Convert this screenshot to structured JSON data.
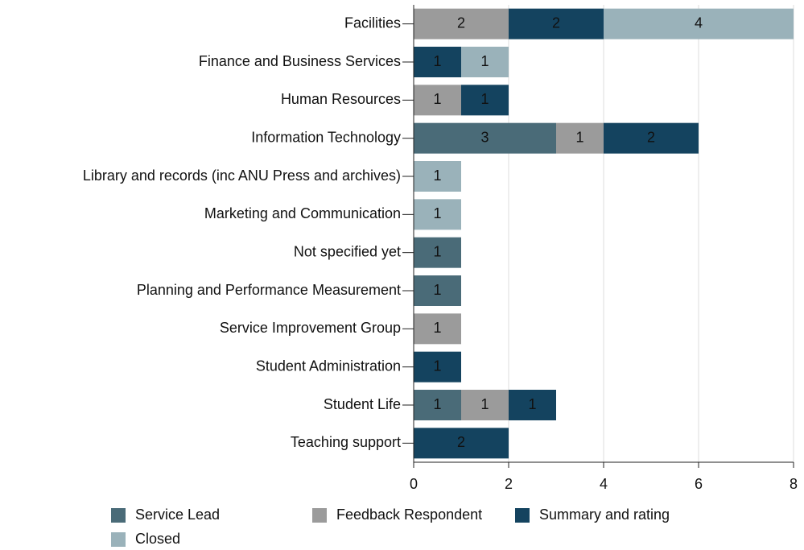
{
  "chart_data": {
    "type": "stacked-bar-horizontal",
    "categories": [
      "Facilities",
      "Finance and Business Services",
      "Human Resources",
      "Information Technology",
      "Library and records (inc ANU Press and archives)",
      "Marketing and Communication",
      "Not specified yet",
      "Planning and Performance Measurement",
      "Service Improvement Group",
      "Student Administration",
      "Student Life",
      "Teaching support"
    ],
    "series": [
      {
        "name": "Service Lead",
        "color": "#4a6b78",
        "values": [
          0,
          0,
          0,
          3,
          0,
          0,
          1,
          1,
          0,
          0,
          1,
          0
        ]
      },
      {
        "name": "Feedback Respondent",
        "color": "#9b9b9b",
        "values": [
          2,
          0,
          1,
          1,
          0,
          0,
          0,
          0,
          1,
          0,
          1,
          0
        ]
      },
      {
        "name": "Summary and rating",
        "color": "#14435f",
        "values": [
          2,
          1,
          1,
          2,
          0,
          0,
          0,
          0,
          0,
          1,
          1,
          2
        ]
      },
      {
        "name": "Closed",
        "color": "#9ab2ba",
        "values": [
          4,
          1,
          0,
          0,
          1,
          1,
          0,
          0,
          0,
          0,
          0,
          0
        ]
      }
    ],
    "xlim": [
      0,
      8
    ],
    "xticks": [
      0,
      2,
      4,
      6,
      8
    ],
    "grid": true
  }
}
